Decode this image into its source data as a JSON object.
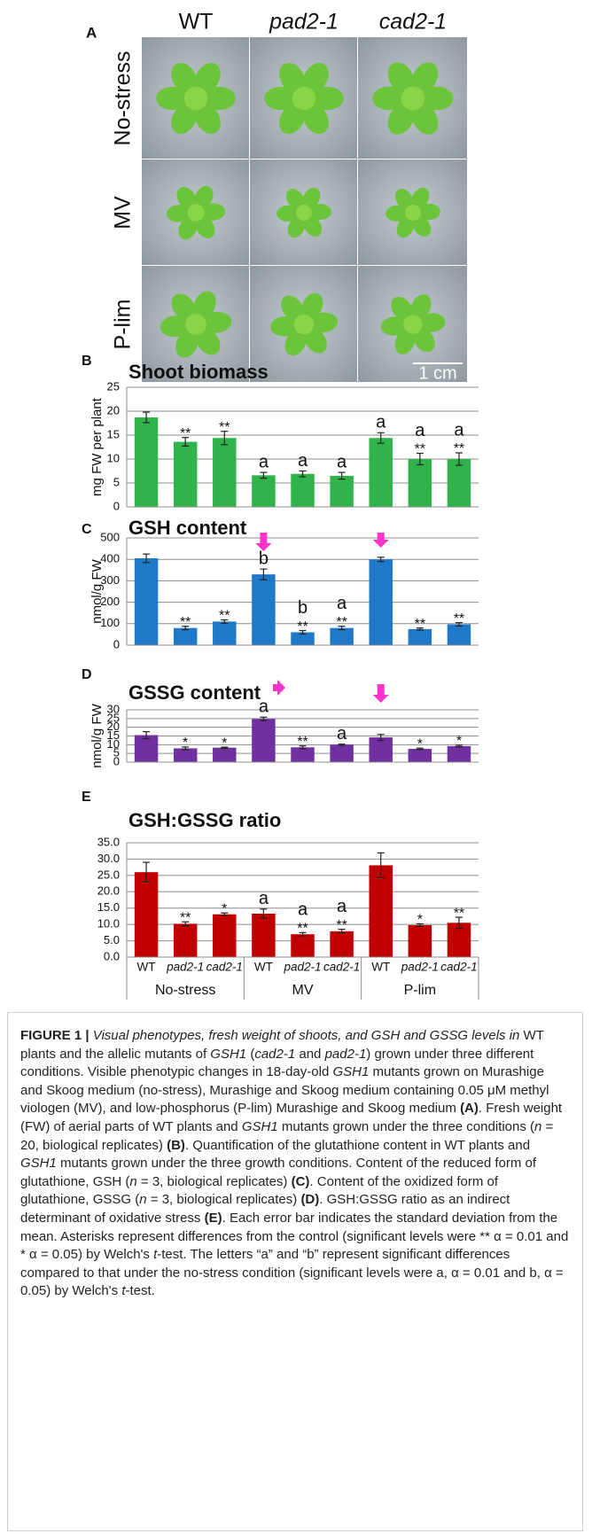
{
  "panel_a": {
    "letter": "A",
    "columns": [
      "WT",
      "pad2-1",
      "cad2-1"
    ],
    "rows": [
      "No-stress",
      "MV",
      "P-lim"
    ],
    "scale_bar": "1 cm"
  },
  "chart_data": [
    {
      "type": "bar",
      "panel": "B",
      "title": "Shoot biomass",
      "ylabel": "mg FW per plant",
      "values": [
        18.7,
        13.6,
        14.4,
        6.6,
        6.9,
        6.5,
        14.4,
        10.0,
        10.0
      ],
      "errors": [
        1.1,
        0.9,
        1.4,
        0.6,
        0.6,
        0.7,
        1.1,
        1.2,
        1.3
      ],
      "annotations": [
        [],
        [
          "**"
        ],
        [
          "**"
        ],
        [
          "a"
        ],
        [
          "a"
        ],
        [
          "a"
        ],
        [
          "a"
        ],
        [
          "a",
          "**"
        ],
        [
          "a",
          "**"
        ]
      ],
      "color": "#2fb34a",
      "ylim": [
        0,
        25
      ],
      "yticks": [
        0,
        5,
        10,
        15,
        20,
        25
      ],
      "grid": true
    },
    {
      "type": "bar",
      "panel": "C",
      "title": "GSH content",
      "ylabel": "nmol/g FW",
      "values": [
        405,
        80,
        110,
        330,
        60,
        80,
        400,
        75,
        97
      ],
      "errors": [
        20,
        8,
        8,
        25,
        8,
        8,
        10,
        5,
        8
      ],
      "annotations": [
        [],
        [
          "**"
        ],
        [
          "**"
        ],
        [
          "b"
        ],
        [
          "b",
          "**"
        ],
        [
          "a",
          "**"
        ],
        [],
        [
          "**"
        ],
        [
          "**"
        ]
      ],
      "color": "#1f78c8",
      "ylim": [
        0,
        500
      ],
      "yticks": [
        0,
        100,
        200,
        300,
        400,
        500
      ],
      "grid": true
    },
    {
      "type": "bar",
      "panel": "D",
      "title": "GSSG content",
      "ylabel": "nmol/g FW",
      "values": [
        15.5,
        7.9,
        8.3,
        24.8,
        8.5,
        10.0,
        14.2,
        7.6,
        9.2
      ],
      "errors": [
        2.0,
        0.8,
        0.3,
        1.0,
        0.8,
        0.3,
        1.7,
        0.4,
        0.5
      ],
      "annotations": [
        [],
        [
          "*"
        ],
        [
          "*"
        ],
        [
          "a"
        ],
        [
          "**"
        ],
        [
          "a"
        ],
        [],
        [
          "*"
        ],
        [
          "*"
        ]
      ],
      "color": "#7030a0",
      "ylim": [
        0,
        30
      ],
      "yticks": [
        0,
        5,
        10,
        15,
        20,
        25,
        30
      ],
      "grid": true
    },
    {
      "type": "bar",
      "panel": "E",
      "title": "GSH:GSSG ratio",
      "categories": [
        "WT",
        "pad2-1",
        "cad2-1",
        "WT",
        "pad2-1",
        "cad2-1",
        "WT",
        "pad2-1",
        "cad2-1"
      ],
      "groups": [
        "No-stress",
        "MV",
        "P-lim"
      ],
      "values": [
        26.0,
        10.2,
        13.1,
        13.3,
        7.0,
        7.9,
        28.1,
        9.8,
        10.5
      ],
      "errors": [
        3.0,
        0.6,
        0.4,
        1.4,
        0.5,
        0.6,
        3.8,
        0.4,
        1.7
      ],
      "annotations": [
        [],
        [
          "**"
        ],
        [
          "*"
        ],
        [
          "a"
        ],
        [
          "a",
          "**"
        ],
        [
          "a",
          "**"
        ],
        [],
        [
          "*"
        ],
        [
          "**"
        ]
      ],
      "color": "#c00000",
      "ylim": [
        0,
        35
      ],
      "yticks": [
        {
          "value": 0,
          "label": "0.0"
        },
        {
          "value": 5,
          "label": "5.0"
        },
        {
          "value": 10,
          "label": "10.0"
        },
        {
          "value": 15,
          "label": "15.0"
        },
        {
          "value": 20,
          "label": "20.0"
        },
        {
          "value": 25,
          "label": "25.0"
        },
        {
          "value": 30,
          "label": "30.0"
        },
        {
          "value": 35,
          "label": "35.0"
        }
      ],
      "grid": true
    }
  ],
  "caption": {
    "runs": [
      {
        "text": "FIGURE 1 | ",
        "bold": true
      },
      {
        "text": "Visual phenotypes, fresh weight of shoots, and GSH and GSSG levels in",
        "italic": true
      },
      {
        "text": " WT plants and the allelic mutants of "
      },
      {
        "text": "GSH1",
        "italic": true
      },
      {
        "text": " ("
      },
      {
        "text": "cad2-1",
        "italic": true
      },
      {
        "text": " and "
      },
      {
        "text": "pad2-1",
        "italic": true
      },
      {
        "text": ") grown under three different conditions. Visible phenotypic changes in 18-day-old "
      },
      {
        "text": "GSH1",
        "italic": true
      },
      {
        "text": " mutants grown on Murashige and Skoog medium (no-stress), Murashige and Skoog medium containing 0.05 μM methyl viologen (MV), and low-phosphorus (P-lim) Murashige and Skoog medium "
      },
      {
        "text": "(A)",
        "bold": true
      },
      {
        "text": ". Fresh weight (FW) of aerial parts of WT plants and "
      },
      {
        "text": "GSH1",
        "italic": true
      },
      {
        "text": " mutants grown under the three conditions ("
      },
      {
        "text": "n",
        "italic": true
      },
      {
        "text": " = 20, biological replicates) "
      },
      {
        "text": "(B)",
        "bold": true
      },
      {
        "text": ". Quantification of the glutathione content in WT plants and "
      },
      {
        "text": "GSH1",
        "italic": true
      },
      {
        "text": " mutants grown under the three growth conditions. Content of the reduced form of glutathione, GSH ("
      },
      {
        "text": "n",
        "italic": true
      },
      {
        "text": " = 3, biological replicates) "
      },
      {
        "text": "(C)",
        "bold": true
      },
      {
        "text": ". Content of the oxidized form of glutathione, GSSG ("
      },
      {
        "text": "n",
        "italic": true
      },
      {
        "text": " = 3, biological replicates) "
      },
      {
        "text": "(D)",
        "bold": true
      },
      {
        "text": ". GSH:GSSG ratio as an indirect determinant of oxidative stress "
      },
      {
        "text": "(E)",
        "bold": true
      },
      {
        "text": ". Each error bar indicates the standard deviation from the mean. Asterisks represent differences from the control (significant levels were ** α = 0.01 and * α = 0.05) by Welch's "
      },
      {
        "text": "t",
        "italic": true
      },
      {
        "text": "-test. The letters “a” and “b” represent significant differences compared to that under the no-stress condition (significant levels were a, α = 0.01 and b, α = 0.05) by Welch's "
      },
      {
        "text": "t",
        "italic": true
      },
      {
        "text": "-test."
      }
    ]
  }
}
